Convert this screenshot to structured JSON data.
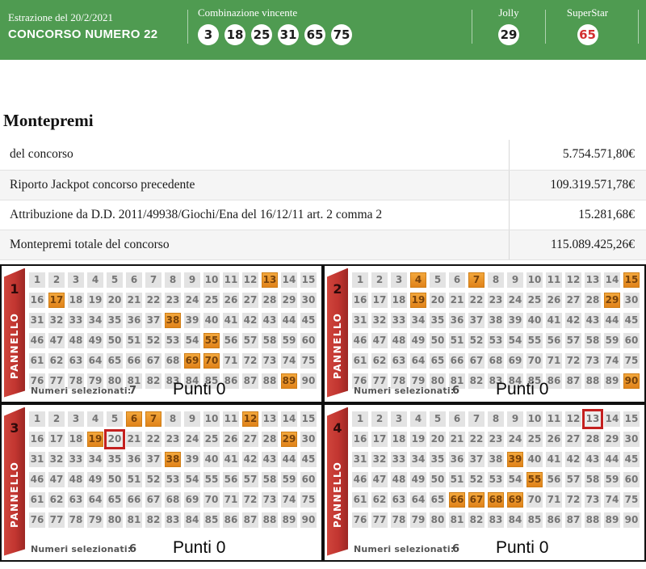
{
  "header": {
    "bg_color": "#4f9b51",
    "draw_date_label": "Estrazione del 20/2/2021",
    "contest_title": "CONCORSO NUMERO 22",
    "winning_combo_label": "Combinazione vincente",
    "winning_numbers": [
      "3",
      "18",
      "25",
      "31",
      "65",
      "75"
    ],
    "jolly_label": "Jolly",
    "jolly_number": "29",
    "superstar_label": "SuperStar",
    "superstar_number": "65",
    "superstar_number_color": "#d32f2f"
  },
  "montepremi": {
    "title": "Montepremi",
    "rows": [
      {
        "label": "del concorso",
        "value": "5.754.571,80€"
      },
      {
        "label": "Riporto Jackpot concorso precedente",
        "value": "109.319.571,78€"
      },
      {
        "label": "Attribuzione da D.D. 2011/49938/Giochi/Ena del 16/12/11 art. 2 comma 2",
        "value": "15.281,68€"
      },
      {
        "label": "Montepremi totale del concorso",
        "value": "115.089.425,26€"
      }
    ]
  },
  "panels": {
    "ribbon_label": "PANNELLO",
    "ribbon_color": "#c13530",
    "grid_max": 90,
    "grid_cols": 15,
    "selected_color": "#e89125",
    "outline_color": "#c4201f",
    "items": [
      {
        "number": "1",
        "selected": [
          13,
          17,
          38,
          55,
          69,
          70,
          89
        ],
        "red_outlined": [],
        "numeri_selezionati_label": "Numeri selezionati:",
        "numeri_selezionati": "7",
        "punti": "Punti 0"
      },
      {
        "number": "2",
        "selected": [
          4,
          7,
          15,
          19,
          29,
          90
        ],
        "red_outlined": [],
        "numeri_selezionati_label": "Numeri selezionati:",
        "numeri_selezionati": "6",
        "punti": "Punti 0"
      },
      {
        "number": "3",
        "selected": [
          6,
          7,
          12,
          19,
          29,
          38
        ],
        "red_outlined": [
          20
        ],
        "numeri_selezionati_label": "Numeri selezionati:",
        "numeri_selezionati": "6",
        "punti": "Punti 0"
      },
      {
        "number": "4",
        "selected": [
          39,
          55,
          66,
          67,
          68,
          69
        ],
        "red_outlined": [
          13
        ],
        "numeri_selezionati_label": "Numeri selezionati:",
        "numeri_selezionati": "6",
        "punti": "Punti 0"
      }
    ]
  }
}
